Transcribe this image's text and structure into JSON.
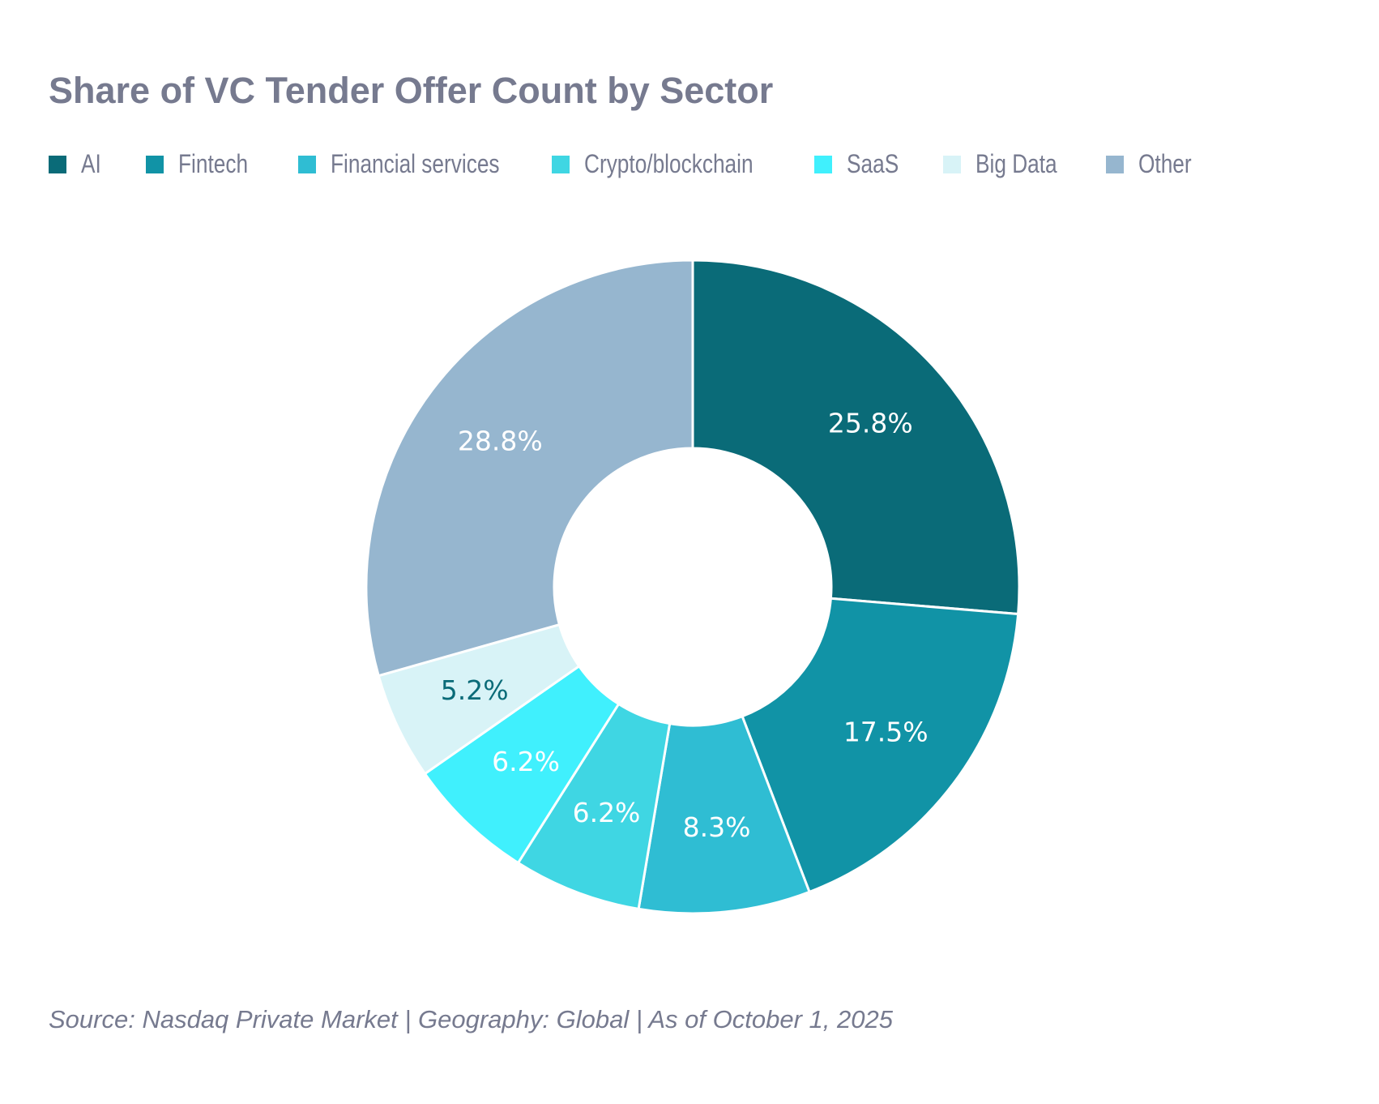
{
  "chart_data": {
    "type": "pie",
    "variant": "donut",
    "title": "Share of VC Tender Offer Count by Sector",
    "legend_position": "top",
    "categories": [
      "AI",
      "Fintech",
      "Financial services",
      "Crypto/blockchain",
      "SaaS",
      "Big Data",
      "Other"
    ],
    "values": [
      25.8,
      17.5,
      8.3,
      6.2,
      6.2,
      5.2,
      28.8
    ],
    "labels": [
      "25.8%",
      "17.5%",
      "8.3%",
      "6.2%",
      "6.2%",
      "5.2%",
      "28.8%"
    ],
    "colors": [
      "#0a6b78",
      "#1193a6",
      "#2fbdd3",
      "#3fd6e3",
      "#40f0fd",
      "#d8f3f7",
      "#96b6cf"
    ],
    "label_colors": [
      "#ffffff",
      "#ffffff",
      "#ffffff",
      "#ffffff",
      "#ffffff",
      "#0a6b78",
      "#ffffff"
    ],
    "unit": "%"
  },
  "footer": "Source: Nasdaq Private Market | Geography: Global | As of October 1, 2025"
}
